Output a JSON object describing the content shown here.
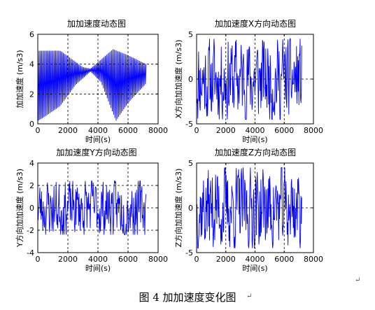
{
  "figure": {
    "caption": "图 4  加加速度变化图",
    "paragraph_mark": "↵"
  },
  "chart_data": [
    {
      "type": "line",
      "title": "加加速度动态图",
      "xlabel": "时间(s)",
      "ylabel": "加加速度 (m/s3)",
      "xlim": [
        0,
        8000
      ],
      "ylim": [
        0,
        6
      ],
      "xticks": [
        0,
        2000,
        4000,
        6000,
        8000
      ],
      "yticks": [
        0,
        2,
        4,
        6
      ],
      "grid": true,
      "color": "#0000ff",
      "pattern": "magnitude-envelope",
      "x_range": [
        0,
        7200
      ],
      "envelope_low": {
        "x": [
          0,
          500,
          1500,
          2500,
          3500,
          4200,
          5200,
          6000,
          7200
        ],
        "y": [
          0.2,
          0.5,
          1.2,
          2.6,
          3.5,
          2.8,
          0.2,
          1.4,
          2.7
        ]
      },
      "envelope_high": {
        "x": [
          0,
          1500,
          3000,
          3500,
          5000,
          6000,
          7200
        ],
        "y": [
          4.9,
          4.9,
          3.8,
          3.7,
          5.0,
          4.6,
          4.0
        ]
      }
    },
    {
      "type": "line",
      "title": "加加速度X方向动态图",
      "xlabel": "时间(s)",
      "ylabel": "X方向加加速度 (m/s3)",
      "xlim": [
        0,
        8000
      ],
      "ylim": [
        -5,
        5
      ],
      "xticks": [
        0,
        2000,
        4000,
        6000,
        8000
      ],
      "yticks": [
        -5,
        0,
        5
      ],
      "grid": true,
      "color": "#0000ff",
      "pattern": "random-signed",
      "x_range": [
        0,
        7200
      ],
      "amplitude": 4.5,
      "seed": 11
    },
    {
      "type": "line",
      "title": "加加速度Y方向动态图",
      "xlabel": "时间(s)",
      "ylabel": "Y方向加加速度 (m/s3)",
      "xlim": [
        0,
        8000
      ],
      "ylim": [
        -4,
        4
      ],
      "xticks": [
        0,
        2000,
        4000,
        6000,
        8000
      ],
      "yticks": [
        -4,
        -2,
        0,
        2,
        4
      ],
      "grid": true,
      "color": "#0000ff",
      "pattern": "random-signed",
      "x_range": [
        0,
        7200
      ],
      "amplitude": 2.4,
      "seed": 23
    },
    {
      "type": "line",
      "title": "加加速度Z方向动态图",
      "xlabel": "时间(s)",
      "ylabel": "Z方向加加速度 (m/s3)",
      "xlim": [
        0,
        8000
      ],
      "ylim": [
        -5,
        5
      ],
      "xticks": [
        0,
        2000,
        4000,
        6000,
        8000
      ],
      "yticks": [
        -5,
        0,
        5
      ],
      "grid": true,
      "color": "#0000ff",
      "pattern": "random-signed",
      "x_range": [
        0,
        7200
      ],
      "amplitude": 4.5,
      "seed": 37
    }
  ]
}
